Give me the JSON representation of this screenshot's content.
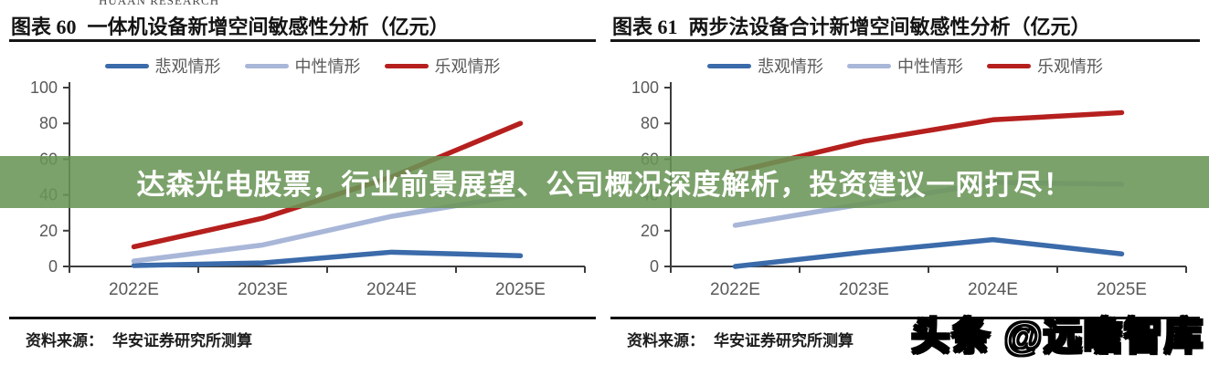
{
  "page": {
    "logo_text": "HUAAN RESEARCH",
    "banner": {
      "text": "达森光电股票，行业前景展望、公司概况深度解析，投资建议一网打尽！",
      "bg_color": "#7CA26A",
      "text_color": "#FFFFFF"
    },
    "watermark_text": "头条 @远瞻智库",
    "colors": {
      "pessimistic_blue": "#3B6BAA",
      "neutral_blue": "#A8B6D8",
      "optimistic_red": "#B5201E",
      "axis_line": "#3D3D3D",
      "tick_label_gray": "#595959"
    }
  },
  "panels": [
    {
      "figure_label": "图表 60",
      "title": "一体机设备新增空间敏感性分析（亿元）",
      "source_label": "资料来源：",
      "source_text": "华安证券研究所测算"
    },
    {
      "figure_label": "图表 61",
      "title": "两步法设备合计新增空间敏感性分析（亿元）",
      "source_label": "资料来源：",
      "source_text": "华安证券研究所测算"
    }
  ],
  "chart_data": [
    {
      "type": "line",
      "title": "图表 60 一体机设备新增空间敏感性分析（亿元）",
      "categories": [
        "2022E",
        "2023E",
        "2024E",
        "2025E"
      ],
      "series": [
        {
          "key": "pessimistic",
          "name": "悲观情形",
          "color": "#3B6BAA",
          "values": [
            0.5,
            2,
            8,
            6
          ]
        },
        {
          "key": "neutral",
          "name": "中性情形",
          "color": "#A8B6D8",
          "values": [
            3,
            12,
            28,
            40
          ]
        },
        {
          "key": "optimistic",
          "name": "乐观情形",
          "color": "#B5201E",
          "values": [
            11,
            27,
            50,
            80
          ]
        }
      ],
      "xlabel": "",
      "ylabel": "",
      "ylim": [
        0,
        100
      ],
      "yticks": [
        0,
        20,
        40,
        60,
        80,
        100
      ],
      "grid": false,
      "legend_position": "top",
      "source": "资料来源：华安证券研究所测算"
    },
    {
      "type": "line",
      "title": "图表 61 两步法设备合计新增空间敏感性分析（亿元）",
      "categories": [
        "2022E",
        "2023E",
        "2024E",
        "2025E"
      ],
      "series": [
        {
          "key": "pessimistic",
          "name": "悲观情形",
          "color": "#3B6BAA",
          "values": [
            0,
            8,
            15,
            7
          ]
        },
        {
          "key": "neutral",
          "name": "中性情形",
          "color": "#A8B6D8",
          "values": [
            23,
            35,
            47,
            46
          ]
        },
        {
          "key": "optimistic",
          "name": "乐观情形",
          "color": "#B5201E",
          "values": [
            53,
            70,
            82,
            86
          ]
        }
      ],
      "xlabel": "",
      "ylabel": "",
      "ylim": [
        0,
        100
      ],
      "yticks": [
        0,
        20,
        40,
        60,
        80,
        100
      ],
      "grid": false,
      "legend_position": "top",
      "source": "资料来源：华安证券研究所测算"
    }
  ]
}
